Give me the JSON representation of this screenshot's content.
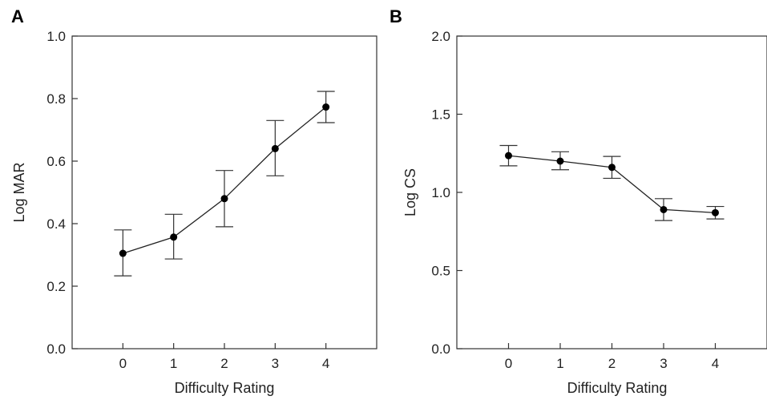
{
  "chart_data": [
    {
      "type": "line",
      "panel_label": "A",
      "xlabel": "Difficulty Rating",
      "ylabel": "Log MAR",
      "x": [
        0,
        1,
        2,
        3,
        4
      ],
      "x_ticks": [
        0,
        1,
        2,
        3,
        4
      ],
      "xlim": [
        -1.0,
        5.0
      ],
      "ylim": [
        0.0,
        1.0
      ],
      "y_ticks": [
        0.0,
        0.2,
        0.4,
        0.6,
        0.8,
        1.0
      ],
      "y_tick_labels": [
        "0.0",
        "0.2",
        "0.4",
        "0.6",
        "0.8",
        "1.0"
      ],
      "series": [
        {
          "values": [
            0.305,
            0.357,
            0.48,
            0.64,
            0.773
          ],
          "error_low": [
            0.233,
            0.287,
            0.39,
            0.553,
            0.723
          ],
          "error_high": [
            0.38,
            0.43,
            0.57,
            0.73,
            0.823
          ]
        }
      ],
      "grid": false
    },
    {
      "type": "line",
      "panel_label": "B",
      "xlabel": "Difficulty Rating",
      "ylabel": "Log CS",
      "x": [
        0,
        1,
        2,
        3,
        4
      ],
      "x_ticks": [
        0,
        1,
        2,
        3,
        4
      ],
      "xlim": [
        -1.0,
        5.0
      ],
      "ylim": [
        0.0,
        2.0
      ],
      "y_ticks": [
        0.0,
        0.5,
        1.0,
        1.5,
        2.0
      ],
      "y_tick_labels": [
        "0.0",
        "0.5",
        "1.0",
        "1.5",
        "2.0"
      ],
      "series": [
        {
          "values": [
            1.235,
            1.2,
            1.16,
            0.89,
            0.87
          ],
          "error_low": [
            1.17,
            1.145,
            1.09,
            0.82,
            0.83
          ],
          "error_high": [
            1.3,
            1.26,
            1.23,
            0.96,
            0.91
          ]
        }
      ],
      "grid": false
    }
  ]
}
